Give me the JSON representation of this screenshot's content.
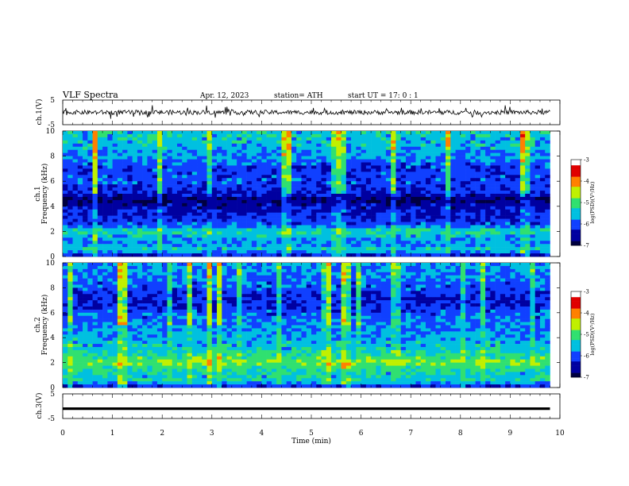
{
  "header": {
    "title": "VLF  Spectra",
    "date": "Apr. 12, 2023",
    "station": "station= ATH",
    "start": "start  UT  =   17: 0   : 1"
  },
  "colors": {
    "colormap": [
      "#000040",
      "#0000a0",
      "#1040ff",
      "#00c0e0",
      "#30e070",
      "#c0f000",
      "#ff8000",
      "#e00000",
      "#ffffff"
    ],
    "trace": "#000000",
    "frame": "#000000"
  },
  "chart_data": [
    {
      "type": "line",
      "name": "ch1-waveform",
      "ylabel": "ch.1(V)",
      "yticks": [
        "5",
        "-5"
      ],
      "ylim": [
        -5,
        5
      ],
      "x_range": [
        0,
        9.8
      ],
      "approx_value_v": 0,
      "note_values": [
        0
      ]
    },
    {
      "type": "heatmap",
      "name": "ch1-spectrogram",
      "ylabel": "ch.1\nFrequency  (kHz)",
      "yticks": [
        "10",
        "8",
        "6",
        "4",
        "2",
        "0"
      ],
      "ylim": [
        0,
        10
      ],
      "x_range": [
        0,
        9.8
      ],
      "colorbar": {
        "label": "log(PSD)(V²/Hz)",
        "ticks": [
          "-3",
          "-4",
          "-5",
          "-6",
          "-7"
        ],
        "range": [
          -7,
          -3
        ]
      },
      "profile": [
        [
          10,
          -5.4
        ],
        [
          9,
          -5.5
        ],
        [
          8,
          -5.7
        ],
        [
          7,
          -6.1
        ],
        [
          6,
          -6.0
        ],
        [
          5,
          -6.3
        ],
        [
          4.5,
          -6.8
        ],
        [
          4,
          -6.5
        ],
        [
          3,
          -6.2
        ],
        [
          2.5,
          -6.0
        ],
        [
          2,
          -5.2
        ],
        [
          1.5,
          -5.6
        ],
        [
          1,
          -5.8
        ],
        [
          0.5,
          -5.3
        ],
        [
          0,
          -6.5
        ]
      ]
    },
    {
      "type": "heatmap",
      "name": "ch2-spectrogram",
      "ylabel": "ch.2\nFrequency  (kHz)",
      "yticks": [
        "10",
        "8",
        "6",
        "4",
        "2",
        "0"
      ],
      "ylim": [
        0,
        10
      ],
      "x_range": [
        0,
        9.8
      ],
      "colorbar": {
        "label": "log(PSD)(V²/Hz)",
        "ticks": [
          "-3",
          "-4",
          "-5",
          "-6",
          "-7"
        ],
        "range": [
          -7,
          -3
        ]
      },
      "profile": [
        [
          10,
          -5.6
        ],
        [
          9,
          -5.8
        ],
        [
          8,
          -6.0
        ],
        [
          7,
          -6.3
        ],
        [
          6,
          -6.0
        ],
        [
          5,
          -5.8
        ],
        [
          4,
          -5.6
        ],
        [
          3,
          -5.4
        ],
        [
          2,
          -4.8
        ],
        [
          1.5,
          -5.2
        ],
        [
          1,
          -5.5
        ],
        [
          0.5,
          -5.3
        ],
        [
          0,
          -6.5
        ]
      ]
    },
    {
      "type": "line",
      "name": "ch3-waveform",
      "ylabel": "ch.3(V)",
      "yticks": [
        "5",
        "-5"
      ],
      "ylim": [
        -5,
        5
      ],
      "x_range": [
        0,
        9.8
      ],
      "approx_value_v": -1
    }
  ],
  "xaxis": {
    "label": "Time  (min)",
    "ticks": [
      "0",
      "1",
      "2",
      "3",
      "4",
      "5",
      "6",
      "7",
      "8",
      "9",
      "10"
    ],
    "range": [
      0,
      10
    ]
  }
}
